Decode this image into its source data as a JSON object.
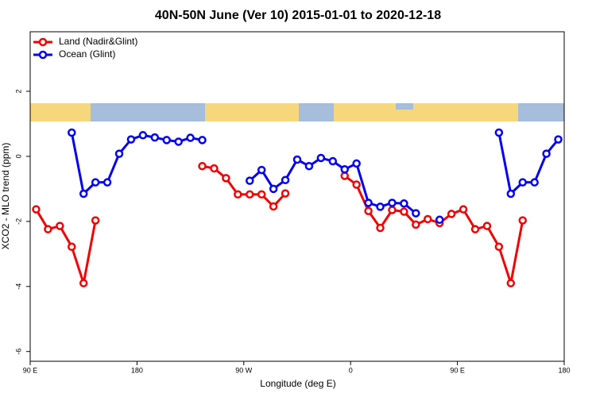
{
  "chart_data": {
    "type": "line",
    "title": "40N-50N June (Ver 10)   2015-01-01 to 2020-12-18",
    "x_label": "Longitude (deg E)",
    "y_label": "XCO2 - MLO trend (ppm)",
    "x": [
      95,
      105,
      115,
      125,
      135,
      145,
      155,
      165,
      175,
      185,
      195,
      205,
      215,
      225,
      235,
      245,
      255,
      265,
      275,
      285,
      295,
      305,
      315,
      325,
      335,
      345,
      355,
      365,
      375,
      385,
      395,
      405,
      415,
      425,
      435,
      445,
      455,
      465,
      475,
      485,
      495,
      505,
      515,
      525,
      535
    ],
    "series": [
      {
        "name": "Land (Nadir&Glint)",
        "color": "#ee0000",
        "values": [
          -1.63,
          -2.24,
          -2.14,
          -2.78,
          -3.9,
          -1.97,
          null,
          null,
          null,
          null,
          null,
          null,
          null,
          null,
          -0.3,
          -0.37,
          -0.67,
          -1.17,
          -1.17,
          -1.17,
          -1.54,
          -1.14,
          null,
          null,
          null,
          null,
          -0.6,
          -0.87,
          -1.68,
          -2.2,
          -1.65,
          -1.7,
          -2.1,
          -1.93,
          -2.05,
          -1.77,
          -1.63,
          -2.24,
          -2.14,
          -2.78,
          -3.9,
          -1.97,
          null,
          null,
          null
        ]
      },
      {
        "name": "Ocean (Glint)",
        "color": "#0000ee",
        "values": [
          null,
          null,
          null,
          0.73,
          -1.15,
          -0.8,
          -0.8,
          0.08,
          0.52,
          0.65,
          0.58,
          0.5,
          0.45,
          0.57,
          0.5,
          null,
          null,
          null,
          -0.75,
          -0.42,
          -1.0,
          -0.73,
          -0.1,
          -0.3,
          -0.05,
          -0.15,
          -0.4,
          -0.22,
          -1.43,
          -1.55,
          -1.43,
          -1.45,
          -1.75,
          null,
          -1.95,
          null,
          null,
          null,
          null,
          0.73,
          -1.15,
          -0.8,
          -0.8,
          0.08,
          0.52
        ]
      }
    ],
    "xlim": [
      90,
      540
    ],
    "xticks": [
      {
        "value": 90,
        "label": "90 E"
      },
      180,
      {
        "value": 270,
        "label": "90 W"
      },
      {
        "value": 360,
        "label": "0"
      },
      {
        "value": 450,
        "label": "90 E"
      },
      {
        "value": 540,
        "label": "180"
      }
    ],
    "ylim": [
      -6.3,
      3.83
    ],
    "yticks": [
      -6,
      -4,
      -2,
      0,
      2
    ],
    "legend": "top-left"
  }
}
